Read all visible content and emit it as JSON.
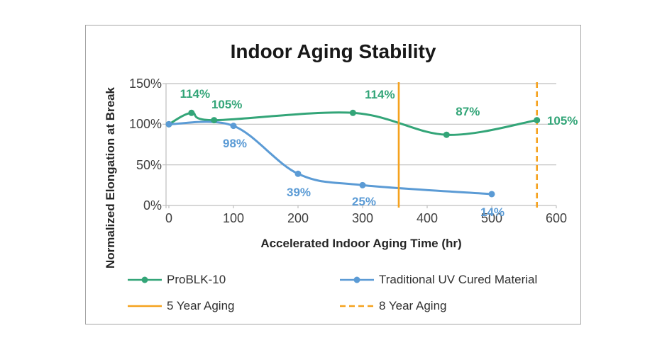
{
  "chart_data": {
    "type": "line",
    "title": "Indoor Aging Stability",
    "xlabel": "Accelerated Indoor Aging Time (hr)",
    "ylabel": "Normalized Elongation at Break",
    "xlim": [
      0,
      600
    ],
    "ylim": [
      0,
      150
    ],
    "y_unit": "%",
    "xticks": [
      "0",
      "100",
      "200",
      "300",
      "400",
      "500",
      "600"
    ],
    "yticks": [
      "0%",
      "50%",
      "100%",
      "150%"
    ],
    "grid": "horizontal",
    "legend_position": "bottom",
    "axis_color": "#bfbfbf",
    "tick_text_color": "#3f3f3f",
    "panel_border_color": "#a6a6a6",
    "series": [
      {
        "name": "ProBLK-10",
        "color": "#33a578",
        "marker": "circle",
        "smooth": true,
        "points": [
          {
            "x": 0,
            "y": 100
          },
          {
            "x": 35,
            "y": 114,
            "label": "114%",
            "dx": 5,
            "dy": -26
          },
          {
            "x": 70,
            "y": 105,
            "label": "105%",
            "dx": 18,
            "dy": -22
          },
          {
            "x": 285,
            "y": 114,
            "label": "114%",
            "dx": 38,
            "dy": -25
          },
          {
            "x": 430,
            "y": 87,
            "label": "87%",
            "dx": 30,
            "dy": -32
          },
          {
            "x": 570,
            "y": 105,
            "label": "105%",
            "dx": 36,
            "dy": 1
          }
        ]
      },
      {
        "name": "Traditional UV Cured Material",
        "color": "#5b9bd5",
        "marker": "circle",
        "smooth": true,
        "points": [
          {
            "x": 0,
            "y": 100
          },
          {
            "x": 100,
            "y": 98,
            "label": "98%",
            "dx": 2,
            "dy": 25
          },
          {
            "x": 200,
            "y": 39,
            "label": "39%",
            "dx": 1,
            "dy": 27
          },
          {
            "x": 300,
            "y": 25,
            "label": "25%",
            "dx": 2,
            "dy": 24
          },
          {
            "x": 500,
            "y": 14,
            "label": "14%",
            "dx": 1,
            "dy": 26
          }
        ]
      }
    ],
    "vlines": [
      {
        "name": "5 Year Aging",
        "x": 356,
        "style": "solid",
        "color": "#f5a21e"
      },
      {
        "name": "8 Year Aging",
        "x": 570,
        "style": "dashed",
        "color": "#f5a21e"
      }
    ],
    "legend": {
      "items": [
        {
          "label": "ProBLK-10",
          "swatch": "line-marker",
          "color": "#33a578"
        },
        {
          "label": "Traditional UV Cured Material",
          "swatch": "line-marker",
          "color": "#5b9bd5"
        },
        {
          "label": "5 Year Aging",
          "swatch": "line",
          "color": "#f5a21e"
        },
        {
          "label": "8 Year Aging",
          "swatch": "dashed-line",
          "color": "#f5a21e"
        }
      ]
    }
  }
}
